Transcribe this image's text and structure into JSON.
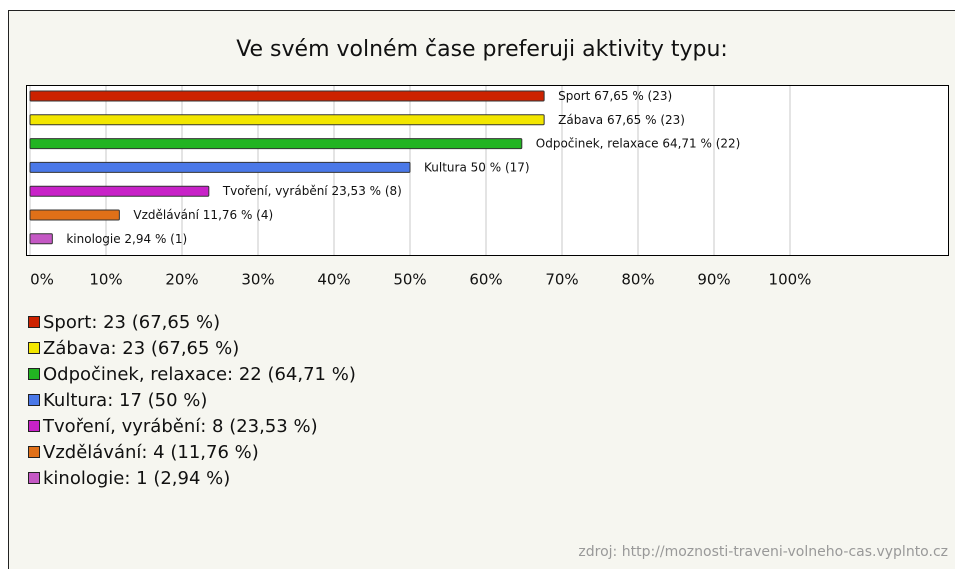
{
  "chart_data": {
    "type": "barh",
    "title": "Ve svém volném čase preferuji aktivity typu:",
    "categories": [
      "Sport",
      "Zábava",
      "Odpočinek, relaxace",
      "Kultura",
      "Tvoření, vyrábění",
      "Vzdělávání",
      "kinologie"
    ],
    "values": [
      67.65,
      67.65,
      64.71,
      50,
      23.53,
      11.76,
      2.94
    ],
    "value_labels": [
      "67,65 % (23)",
      "67,65 % (23)",
      "64,71 % (22)",
      "50 % (17)",
      "23,53 % (8)",
      "11,76 % (4)",
      "2,94 % (1)"
    ],
    "colors": [
      "#cc2200",
      "#f2e600",
      "#22b422",
      "#4a78e8",
      "#c822c8",
      "#e07018",
      "#c458c4"
    ],
    "legend_labels": [
      "Sport: 23 (67,65 %)",
      "Zábava: 23 (67,65 %)",
      "Odpočinek, relaxace: 22 (64,71 %)",
      "Kultura: 17 (50 %)",
      "Tvoření, vyrábění: 8 (23,53 %)",
      "Vzdělávání: 4 (11,76 %)",
      "kinologie: 1 (2,94 %)"
    ],
    "xlim": [
      0,
      100
    ],
    "xticks": [
      {
        "value": 0,
        "label": "0%"
      },
      {
        "value": 10,
        "label": "10%"
      },
      {
        "value": 20,
        "label": "20%"
      },
      {
        "value": 30,
        "label": "30%"
      },
      {
        "value": 40,
        "label": "40%"
      },
      {
        "value": 50,
        "label": "50%"
      },
      {
        "value": 60,
        "label": "60%"
      },
      {
        "value": 70,
        "label": "70%"
      },
      {
        "value": 80,
        "label": "80%"
      },
      {
        "value": 90,
        "label": "90%"
      },
      {
        "value": 100,
        "label": "100%"
      }
    ],
    "grid": true,
    "source": "zdroj: http://moznosti-traveni-volneho-cas.vyplnto.cz"
  }
}
